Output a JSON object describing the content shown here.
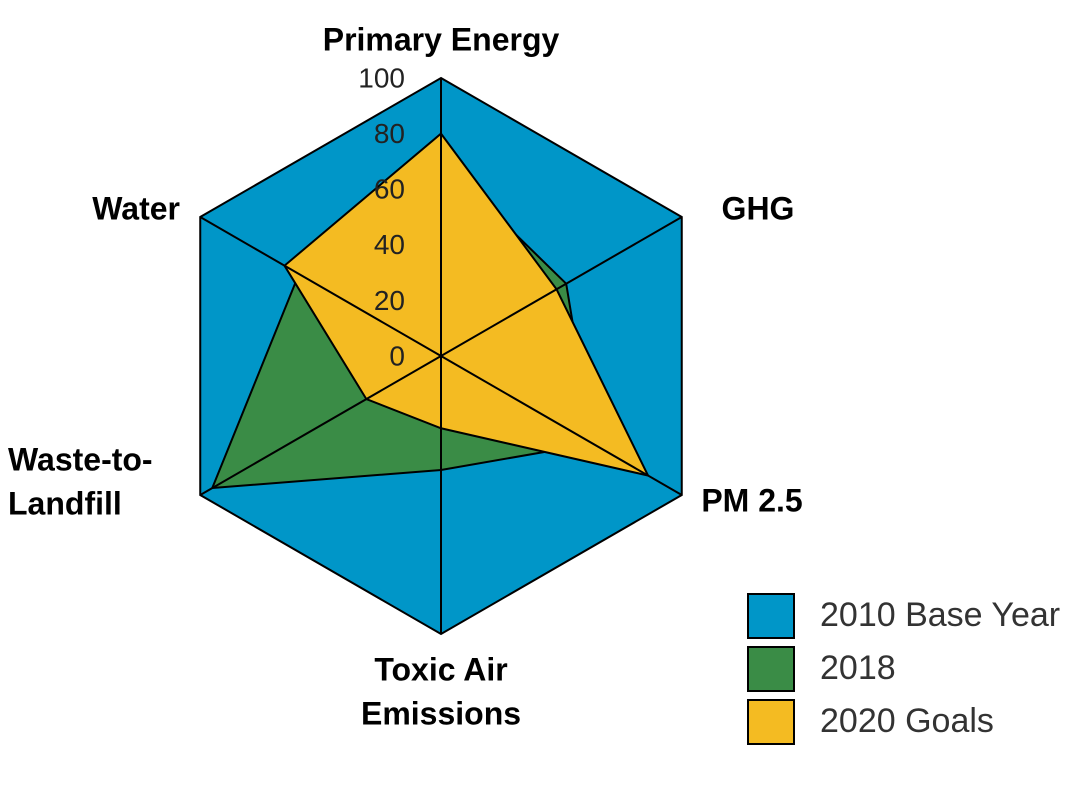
{
  "chart_data": {
    "type": "radar",
    "categories": [
      [
        "Primary Energy"
      ],
      [
        "GHG"
      ],
      [
        "PM 2.5"
      ],
      [
        "Toxic Air",
        "Emissions"
      ],
      [
        "Waste-to-",
        "Landfill"
      ],
      [
        "Water"
      ]
    ],
    "series": [
      {
        "name": "2010 Base Year",
        "color": "#0096c8",
        "values": [
          100,
          100,
          100,
          100,
          100,
          100
        ]
      },
      {
        "name": "2018",
        "color": "#3a8c46",
        "values": [
          70,
          52,
          63,
          41,
          95,
          59
        ]
      },
      {
        "name": "2020 Goals",
        "color": "#f4bb22",
        "values": [
          80,
          48,
          86,
          26,
          31,
          65
        ]
      }
    ],
    "ylim": [
      0,
      100
    ],
    "yticks": [
      0,
      20,
      40,
      60,
      80,
      100
    ]
  }
}
